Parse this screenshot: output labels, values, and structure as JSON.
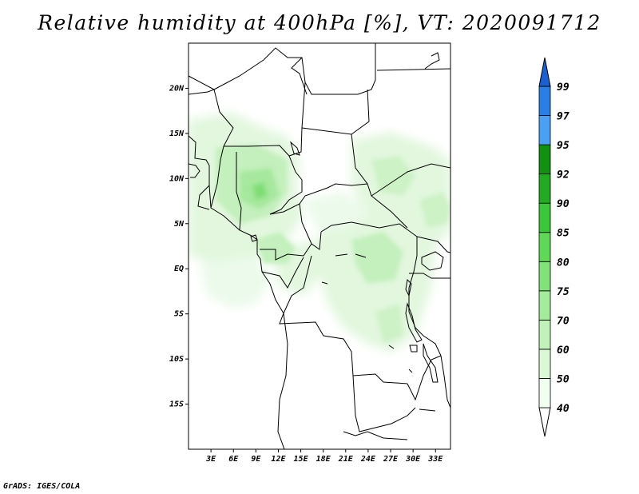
{
  "title": "Relative humidity at 400hPa [%], VT: 2020091712",
  "footer": "GrADS: IGES/COLA",
  "map": {
    "lon_range": [
      0,
      35
    ],
    "lat_range": [
      -20,
      25
    ],
    "lat_ticks": [
      {
        "value": 20,
        "label": "20N"
      },
      {
        "value": 15,
        "label": "15N"
      },
      {
        "value": 10,
        "label": "10N"
      },
      {
        "value": 5,
        "label": "5N"
      },
      {
        "value": 0,
        "label": "EQ"
      },
      {
        "value": -5,
        "label": "5S"
      },
      {
        "value": -10,
        "label": "10S"
      },
      {
        "value": -15,
        "label": "15S"
      }
    ],
    "lon_ticks": [
      {
        "value": 3,
        "label": "3E"
      },
      {
        "value": 6,
        "label": "6E"
      },
      {
        "value": 9,
        "label": "9E"
      },
      {
        "value": 12,
        "label": "12E"
      },
      {
        "value": 15,
        "label": "15E"
      },
      {
        "value": 18,
        "label": "18E"
      },
      {
        "value": 21,
        "label": "21E"
      },
      {
        "value": 24,
        "label": "24E"
      },
      {
        "value": 27,
        "label": "27E"
      },
      {
        "value": 30,
        "label": "30E"
      },
      {
        "value": 33,
        "label": "33E"
      }
    ]
  },
  "colorbar": {
    "bins": [
      {
        "label": "40",
        "color": "#f0fff0"
      },
      {
        "label": "50",
        "color": "#daf8d6"
      },
      {
        "label": "60",
        "color": "#c0f2ba"
      },
      {
        "label": "70",
        "color": "#a4eb9c"
      },
      {
        "label": "75",
        "color": "#82e27a"
      },
      {
        "label": "80",
        "color": "#5fd858"
      },
      {
        "label": "85",
        "color": "#3cc63a"
      },
      {
        "label": "90",
        "color": "#22aa22"
      },
      {
        "label": "92",
        "color": "#119011"
      },
      {
        "label": "95",
        "color": "#4aa0f2"
      },
      {
        "label": "97",
        "color": "#2a7ee6"
      },
      {
        "label": "99",
        "color": "#1c5fd0"
      }
    ],
    "low_cap_color": "#ffffff",
    "high_cap_color": "#1c5fd0"
  }
}
